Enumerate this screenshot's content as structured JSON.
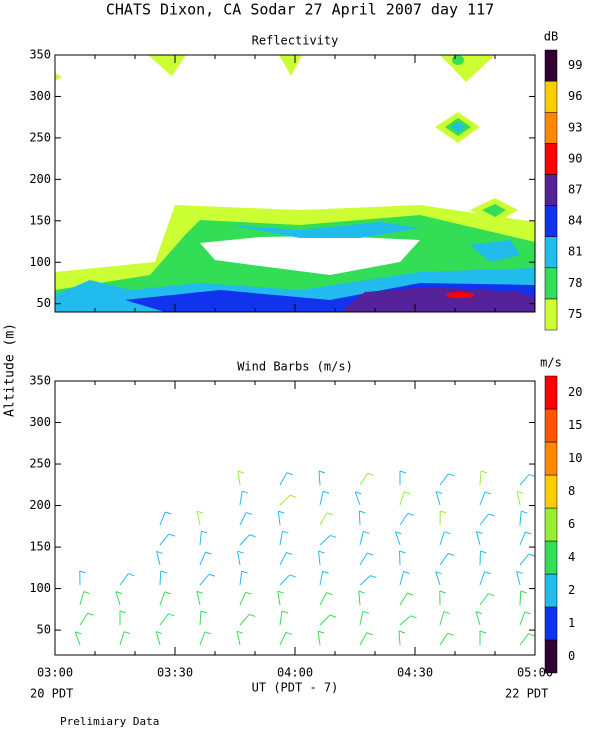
{
  "chart_data": {
    "type": "contour",
    "title": "CHATS Dixon, CA  Sodar  27 April 2007  day 117",
    "y_label": "Altitude (m)",
    "x_label": "UT  (PDT - 7)",
    "x_start_note": "20 PDT",
    "x_end_note": "22 PDT",
    "footnote": "Prelimiary Data",
    "categories": [
      "03:00",
      "03:30",
      "04:00",
      "04:30",
      "05:00"
    ],
    "panels": [
      {
        "title": "Reflectivity",
        "unit": "dB",
        "ylim": [
          40,
          350
        ],
        "yticks": [
          50,
          100,
          150,
          200,
          250,
          300,
          350
        ],
        "levels": [
          75,
          78,
          81,
          84,
          87,
          90,
          93,
          96,
          99
        ],
        "colors": [
          "#ccff33",
          "#33dd55",
          "#22bbee",
          "#1133ee",
          "#552299",
          "#ff0000",
          "#ff8800",
          "#ffcc00",
          "#330033"
        ]
      },
      {
        "title": "Wind Barbs (m/s)",
        "unit": "m/s",
        "ylim": [
          20,
          350
        ],
        "yticks": [
          50,
          100,
          150,
          200,
          250,
          300,
          350
        ],
        "levels": [
          0,
          1,
          2,
          4,
          6,
          8,
          10,
          15,
          20
        ],
        "colors": [
          "#330033",
          "#1133ee",
          "#22bbee",
          "#33dd55",
          "#99ee33",
          "#ffcc00",
          "#ff8800",
          "#ff5500",
          "#ff0000"
        ]
      }
    ]
  }
}
